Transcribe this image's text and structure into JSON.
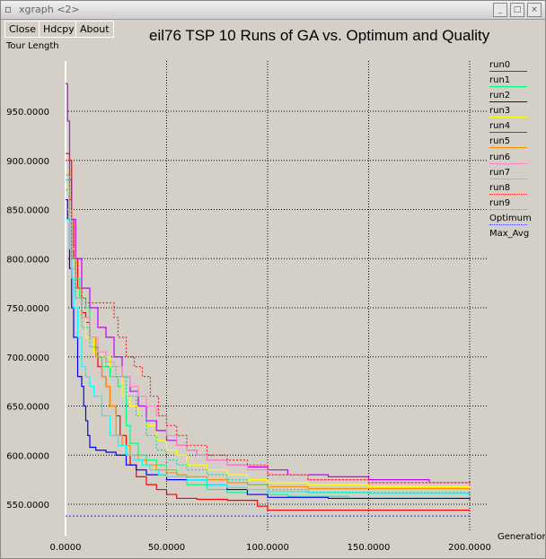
{
  "window": {
    "title": "xgraph <2>",
    "buttons": [
      "Close",
      "Hdcpy",
      "About"
    ]
  },
  "colors": {
    "background": "#d4d0c8",
    "plot_background": "#d4d0c8",
    "grid": "#000000",
    "axis": "#ffffff"
  },
  "chart_data": {
    "type": "line",
    "title": "eil76 TSP 10 Runs of GA vs. Optimum and Quality",
    "xlabel": "Generation...",
    "ylabel": "Tour Length",
    "xlim": [
      -3,
      215
    ],
    "ylim": [
      530,
      985
    ],
    "xticks": [
      0,
      50,
      100,
      150,
      200
    ],
    "xtick_labels": [
      "0.0000",
      "50.0000",
      "100.0000",
      "150.0000",
      "200.0000"
    ],
    "yticks": [
      550,
      600,
      650,
      700,
      750,
      800,
      850,
      900,
      950
    ],
    "ytick_labels": [
      "550.0000",
      "600.0000",
      "650.0000",
      "700.0000",
      "750.0000",
      "800.0000",
      "850.0000",
      "900.0000",
      "950.0000"
    ],
    "grid": true,
    "legend_position": "right",
    "series": [
      {
        "name": "run0",
        "color": "#ff0000",
        "style": "solid",
        "points": [
          [
            0,
            907
          ],
          [
            2,
            900
          ],
          [
            3,
            840
          ],
          [
            4,
            800
          ],
          [
            6,
            770
          ],
          [
            8,
            745
          ],
          [
            10,
            735
          ],
          [
            12,
            720
          ],
          [
            14,
            710
          ],
          [
            16,
            690
          ],
          [
            18,
            680
          ],
          [
            20,
            670
          ],
          [
            22,
            650
          ],
          [
            25,
            640
          ],
          [
            27,
            620
          ],
          [
            30,
            600
          ],
          [
            32,
            590
          ],
          [
            35,
            578
          ],
          [
            40,
            570
          ],
          [
            45,
            565
          ],
          [
            50,
            560
          ],
          [
            55,
            556
          ],
          [
            65,
            555
          ],
          [
            80,
            554
          ],
          [
            95,
            548
          ],
          [
            100,
            544
          ],
          [
            200,
            544
          ]
        ]
      },
      {
        "name": "run1",
        "color": "#00ff80",
        "style": "solid",
        "points": [
          [
            0,
            880
          ],
          [
            2,
            860
          ],
          [
            3,
            800
          ],
          [
            5,
            780
          ],
          [
            7,
            760
          ],
          [
            10,
            750
          ],
          [
            12,
            720
          ],
          [
            15,
            700
          ],
          [
            18,
            690
          ],
          [
            22,
            680
          ],
          [
            26,
            670
          ],
          [
            28,
            660
          ],
          [
            30,
            630
          ],
          [
            32,
            612
          ],
          [
            36,
            600
          ],
          [
            40,
            595
          ],
          [
            45,
            590
          ],
          [
            50,
            585
          ],
          [
            55,
            580
          ],
          [
            60,
            570
          ],
          [
            70,
            565
          ],
          [
            80,
            562
          ],
          [
            90,
            560
          ],
          [
            110,
            558
          ],
          [
            140,
            556
          ],
          [
            200,
            555
          ]
        ]
      },
      {
        "name": "run2",
        "color": "#0000ff",
        "style": "solid",
        "points": [
          [
            0,
            860
          ],
          [
            1,
            840
          ],
          [
            2,
            790
          ],
          [
            3,
            750
          ],
          [
            4,
            720
          ],
          [
            6,
            680
          ],
          [
            8,
            670
          ],
          [
            9,
            650
          ],
          [
            10,
            635
          ],
          [
            11,
            620
          ],
          [
            12,
            608
          ],
          [
            15,
            605
          ],
          [
            20,
            603
          ],
          [
            25,
            600
          ],
          [
            30,
            590
          ],
          [
            35,
            585
          ],
          [
            40,
            580
          ],
          [
            50,
            575
          ],
          [
            60,
            575
          ],
          [
            70,
            570
          ],
          [
            80,
            565
          ],
          [
            90,
            560
          ],
          [
            100,
            557
          ],
          [
            130,
            556
          ],
          [
            200,
            555
          ]
        ]
      },
      {
        "name": "run3",
        "color": "#ffff00",
        "style": "solid",
        "points": [
          [
            0,
            890
          ],
          [
            2,
            860
          ],
          [
            3,
            810
          ],
          [
            5,
            760
          ],
          [
            8,
            740
          ],
          [
            10,
            720
          ],
          [
            14,
            705
          ],
          [
            18,
            700
          ],
          [
            22,
            690
          ],
          [
            28,
            660
          ],
          [
            32,
            650
          ],
          [
            36,
            640
          ],
          [
            40,
            630
          ],
          [
            45,
            615
          ],
          [
            50,
            605
          ],
          [
            55,
            600
          ],
          [
            60,
            590
          ],
          [
            70,
            585
          ],
          [
            80,
            580
          ],
          [
            90,
            575
          ],
          [
            100,
            572
          ],
          [
            120,
            570
          ],
          [
            150,
            568
          ],
          [
            200,
            567
          ]
        ]
      },
      {
        "name": "run4",
        "color": "#c000ff",
        "style": "solid",
        "points": [
          [
            0,
            978
          ],
          [
            1,
            940
          ],
          [
            2,
            880
          ],
          [
            3,
            840
          ],
          [
            5,
            800
          ],
          [
            8,
            770
          ],
          [
            12,
            750
          ],
          [
            16,
            730
          ],
          [
            20,
            720
          ],
          [
            24,
            700
          ],
          [
            28,
            680
          ],
          [
            32,
            665
          ],
          [
            36,
            650
          ],
          [
            40,
            635
          ],
          [
            45,
            625
          ],
          [
            50,
            615
          ],
          [
            55,
            610
          ],
          [
            60,
            605
          ],
          [
            65,
            600
          ],
          [
            70,
            595
          ],
          [
            80,
            590
          ],
          [
            90,
            588
          ],
          [
            100,
            585
          ],
          [
            110,
            580
          ],
          [
            130,
            578
          ],
          [
            150,
            575
          ],
          [
            180,
            572
          ],
          [
            200,
            569
          ]
        ]
      },
      {
        "name": "run5",
        "color": "#ff9000",
        "style": "solid",
        "points": [
          [
            0,
            885
          ],
          [
            2,
            850
          ],
          [
            3,
            800
          ],
          [
            5,
            770
          ],
          [
            8,
            740
          ],
          [
            12,
            720
          ],
          [
            15,
            700
          ],
          [
            18,
            680
          ],
          [
            20,
            670
          ],
          [
            22,
            650
          ],
          [
            25,
            620
          ],
          [
            28,
            610
          ],
          [
            32,
            600
          ],
          [
            36,
            595
          ],
          [
            40,
            590
          ],
          [
            45,
            585
          ],
          [
            50,
            582
          ],
          [
            55,
            580
          ],
          [
            60,
            578
          ],
          [
            70,
            575
          ],
          [
            80,
            572
          ],
          [
            90,
            570
          ],
          [
            100,
            568
          ],
          [
            120,
            566
          ],
          [
            200,
            565
          ]
        ]
      },
      {
        "name": "run6",
        "color": "#ff88cc",
        "style": "solid",
        "points": [
          [
            0,
            850
          ],
          [
            2,
            830
          ],
          [
            3,
            790
          ],
          [
            5,
            760
          ],
          [
            8,
            740
          ],
          [
            12,
            720
          ],
          [
            16,
            705
          ],
          [
            20,
            695
          ],
          [
            24,
            690
          ],
          [
            28,
            680
          ],
          [
            32,
            670
          ],
          [
            36,
            660
          ],
          [
            40,
            650
          ],
          [
            45,
            640
          ],
          [
            50,
            620
          ],
          [
            55,
            610
          ],
          [
            60,
            605
          ],
          [
            65,
            600
          ],
          [
            70,
            595
          ],
          [
            80,
            590
          ],
          [
            90,
            585
          ],
          [
            100,
            580
          ],
          [
            120,
            575
          ],
          [
            150,
            572
          ],
          [
            200,
            570
          ]
        ]
      },
      {
        "name": "run7",
        "color": "#00ffff",
        "style": "solid",
        "points": [
          [
            0,
            840
          ],
          [
            2,
            810
          ],
          [
            3,
            780
          ],
          [
            4,
            750
          ],
          [
            6,
            720
          ],
          [
            8,
            690
          ],
          [
            10,
            680
          ],
          [
            12,
            670
          ],
          [
            14,
            660
          ],
          [
            18,
            640
          ],
          [
            22,
            620
          ],
          [
            26,
            610
          ],
          [
            30,
            600
          ],
          [
            34,
            595
          ],
          [
            38,
            590
          ],
          [
            42,
            585
          ],
          [
            46,
            580
          ],
          [
            50,
            578
          ],
          [
            60,
            575
          ],
          [
            70,
            570
          ],
          [
            80,
            567
          ],
          [
            90,
            565
          ],
          [
            100,
            563
          ],
          [
            120,
            562
          ],
          [
            150,
            561
          ],
          [
            200,
            560
          ]
        ]
      },
      {
        "name": "run8",
        "color": "#ff2020",
        "style": "dotted",
        "points": [
          [
            0,
            900
          ],
          [
            2,
            860
          ],
          [
            3,
            800
          ],
          [
            5,
            770
          ],
          [
            8,
            760
          ],
          [
            10,
            755
          ],
          [
            12,
            755
          ],
          [
            20,
            755
          ],
          [
            24,
            740
          ],
          [
            26,
            720
          ],
          [
            30,
            700
          ],
          [
            34,
            690
          ],
          [
            38,
            680
          ],
          [
            42,
            660
          ],
          [
            46,
            640
          ],
          [
            50,
            630
          ],
          [
            55,
            620
          ],
          [
            60,
            610
          ],
          [
            70,
            600
          ],
          [
            80,
            595
          ],
          [
            90,
            590
          ],
          [
            100,
            580
          ],
          [
            120,
            575
          ],
          [
            150,
            572
          ],
          [
            200,
            570
          ]
        ]
      },
      {
        "name": "run9",
        "color": "#00e0a0",
        "style": "dotted",
        "points": [
          [
            0,
            870
          ],
          [
            2,
            840
          ],
          [
            3,
            800
          ],
          [
            5,
            760
          ],
          [
            8,
            730
          ],
          [
            12,
            710
          ],
          [
            16,
            700
          ],
          [
            20,
            690
          ],
          [
            25,
            680
          ],
          [
            30,
            660
          ],
          [
            35,
            640
          ],
          [
            40,
            620
          ],
          [
            45,
            605
          ],
          [
            50,
            595
          ],
          [
            55,
            590
          ],
          [
            60,
            585
          ],
          [
            70,
            580
          ],
          [
            80,
            575
          ],
          [
            90,
            570
          ],
          [
            100,
            565
          ],
          [
            120,
            562
          ],
          [
            200,
            560
          ]
        ]
      },
      {
        "name": "Optimum",
        "color": "#4040ff",
        "style": "dotted",
        "points": [
          [
            0,
            538
          ],
          [
            200,
            538
          ]
        ]
      },
      {
        "name": "Max_Avg",
        "color": "#d4d0c8",
        "style": "none",
        "points": []
      }
    ]
  }
}
